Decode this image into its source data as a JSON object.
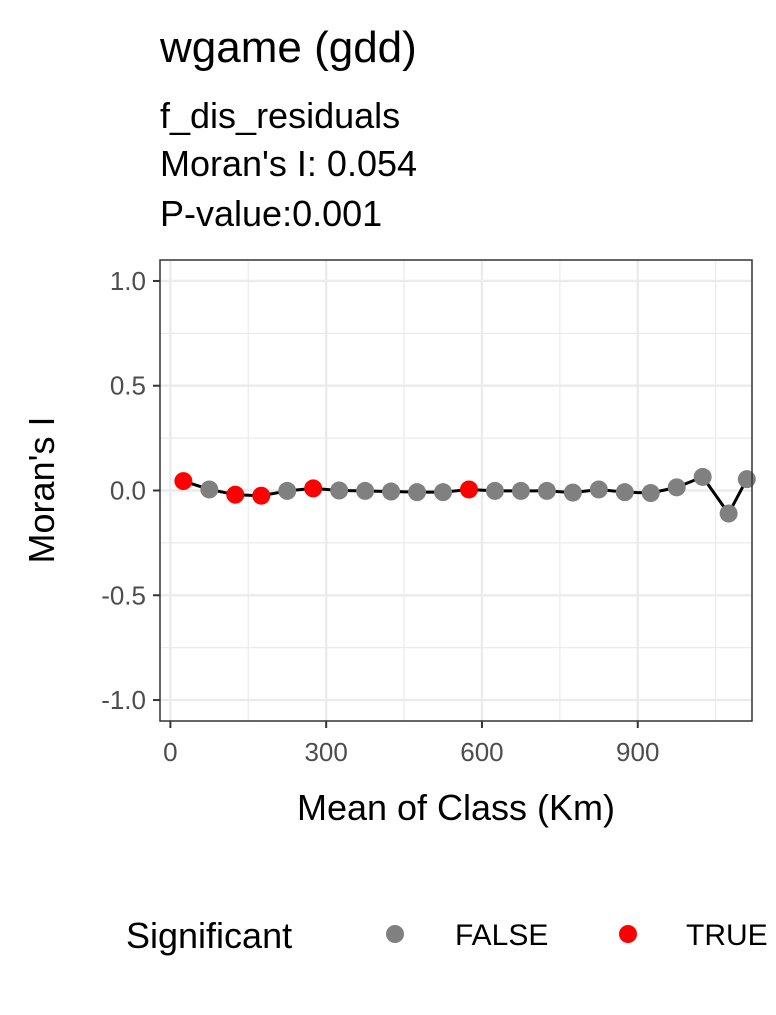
{
  "chart_data": {
    "type": "scatter",
    "title": "wgame (gdd)",
    "subtitle_lines": [
      "f_dis_residuals",
      "Moran's I: 0.054",
      "P-value:0.001"
    ],
    "xlabel": "Mean of Class (Km)",
    "ylabel": "Moran's I",
    "xlim": [
      -20,
      1120
    ],
    "ylim": [
      -1.1,
      1.1
    ],
    "x_ticks": [
      0,
      300,
      600,
      900
    ],
    "x_tick_labels": [
      "0",
      "300",
      "600",
      "900"
    ],
    "y_ticks": [
      1.0,
      0.5,
      0.0,
      -0.5,
      -1.0
    ],
    "y_tick_labels": [
      "1.0",
      "0.5",
      "0.0",
      "-0.5",
      "-1.0"
    ],
    "grid": true,
    "connect_points": true,
    "legend": {
      "title": "Significant",
      "position": "bottom",
      "entries": [
        {
          "label": "FALSE",
          "color": "#808080"
        },
        {
          "label": "TRUE",
          "color": "#ff0000"
        }
      ]
    },
    "points": [
      {
        "x": 25,
        "y": 0.045,
        "significant": "TRUE"
      },
      {
        "x": 75,
        "y": 0.005,
        "significant": "FALSE"
      },
      {
        "x": 125,
        "y": -0.02,
        "significant": "TRUE"
      },
      {
        "x": 175,
        "y": -0.025,
        "significant": "TRUE"
      },
      {
        "x": 225,
        "y": -0.002,
        "significant": "FALSE"
      },
      {
        "x": 275,
        "y": 0.01,
        "significant": "TRUE"
      },
      {
        "x": 325,
        "y": 0.0,
        "significant": "FALSE"
      },
      {
        "x": 375,
        "y": -0.002,
        "significant": "FALSE"
      },
      {
        "x": 425,
        "y": -0.005,
        "significant": "FALSE"
      },
      {
        "x": 475,
        "y": -0.008,
        "significant": "FALSE"
      },
      {
        "x": 525,
        "y": -0.008,
        "significant": "FALSE"
      },
      {
        "x": 575,
        "y": 0.005,
        "significant": "TRUE"
      },
      {
        "x": 625,
        "y": -0.002,
        "significant": "FALSE"
      },
      {
        "x": 675,
        "y": -0.002,
        "significant": "FALSE"
      },
      {
        "x": 725,
        "y": -0.002,
        "significant": "FALSE"
      },
      {
        "x": 775,
        "y": -0.01,
        "significant": "FALSE"
      },
      {
        "x": 825,
        "y": 0.005,
        "significant": "FALSE"
      },
      {
        "x": 875,
        "y": -0.008,
        "significant": "FALSE"
      },
      {
        "x": 925,
        "y": -0.012,
        "significant": "FALSE"
      },
      {
        "x": 975,
        "y": 0.015,
        "significant": "FALSE"
      },
      {
        "x": 1025,
        "y": 0.065,
        "significant": "FALSE"
      },
      {
        "x": 1075,
        "y": -0.11,
        "significant": "FALSE"
      },
      {
        "x": 1110,
        "y": 0.054,
        "significant": "FALSE"
      }
    ]
  }
}
